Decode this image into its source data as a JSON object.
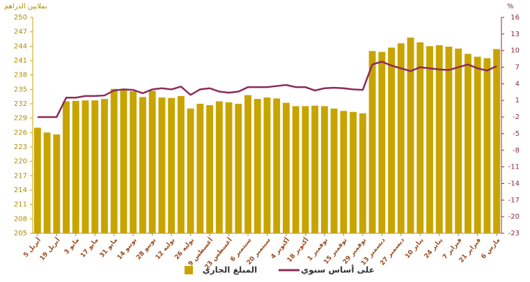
{
  "chart_data": {
    "type": "bar-line",
    "y_label": "بملايين الدراهم",
    "y2_label": "%",
    "categories": [
      "5 أبريل",
      null,
      "19 أبريل",
      null,
      "3 مايو",
      null,
      "17 مايو",
      null,
      "31 مايو",
      null,
      "14 يونيو",
      null,
      "28 يونيو",
      null,
      "12 يوليه",
      null,
      "26 يوليه",
      null,
      "9 أغسطس",
      null,
      "23 أغسطس",
      null,
      "6 سبتمبر",
      null,
      "20 سبتمبر",
      null,
      "4 أكتوبر",
      null,
      "18 أكتوبر",
      null,
      "1 نوفمبر",
      null,
      "15 نوفمبر",
      null,
      "29 نوفمبر",
      null,
      "13 ديسمبر",
      null,
      "27 ديسمبر",
      null,
      "10 يناير",
      null,
      "24 يناير",
      null,
      "7 فبراير",
      null,
      "21 فبراير",
      null,
      "6 مارس"
    ],
    "series": [
      {
        "name": "المبلغ الجاري",
        "type": "bar",
        "color": "#c8a400",
        "axis": "y",
        "values": [
          227,
          226,
          225.6,
          232.5,
          232.6,
          232.7,
          232.7,
          233,
          235.1,
          235,
          234.6,
          233.4,
          234.7,
          233.3,
          233.2,
          233.6,
          231,
          232,
          231.7,
          232.5,
          232.3,
          232,
          233.8,
          233,
          233.3,
          233.1,
          232.2,
          231.5,
          231.5,
          231.6,
          231.5,
          231,
          230.5,
          230.3,
          230,
          243,
          242.8,
          243.7,
          244.6,
          245.8,
          244.8,
          244,
          244.2,
          243.9,
          243.5,
          242.4,
          241.8,
          241.5,
          243.4
        ]
      },
      {
        "name": "على أساس سنوي",
        "type": "line",
        "color": "#8b2a5a",
        "axis": "y2",
        "values": [
          -2,
          -2,
          -2,
          1.5,
          1.5,
          1.8,
          1.8,
          1.9,
          2.8,
          3,
          2.9,
          2.3,
          3,
          3.2,
          3,
          3.5,
          2,
          3,
          3.2,
          2.6,
          2.4,
          2.6,
          3.4,
          3.4,
          3.4,
          3.6,
          3.8,
          3.4,
          3.4,
          2.8,
          3.2,
          3.3,
          3.2,
          3,
          2.9,
          7.5,
          8,
          7.3,
          6.8,
          6.3,
          7,
          6.8,
          6.6,
          6.5,
          7,
          7.5,
          6.8,
          6.4,
          7.2
        ]
      }
    ],
    "ylim": [
      205,
      250
    ],
    "yticks": [
      205,
      208,
      211,
      214,
      217,
      220,
      223,
      226,
      229,
      232,
      235,
      238,
      241,
      244,
      247,
      250
    ],
    "y2lim": [
      -23,
      16
    ],
    "y2ticks": [
      -23,
      -20,
      -17,
      -14,
      -11,
      -8,
      -5,
      -2,
      1,
      4,
      7,
      10,
      13,
      16
    ]
  }
}
